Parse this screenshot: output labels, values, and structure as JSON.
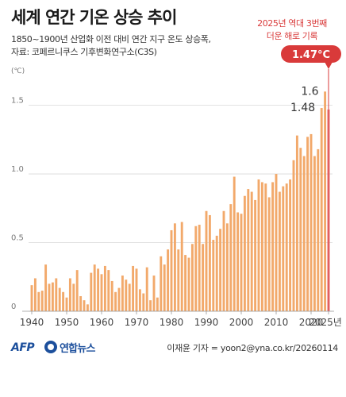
{
  "header": {
    "title": "세계 연간 기온 상승 추이",
    "subtitle_line1": "1850~1900년 산업화 이전 대비 연간 지구 온도 상승폭,",
    "subtitle_line2": "자료: 코페르니쿠스 기후변화연구소(C3S)"
  },
  "highlight": {
    "note_line1": "2025년 역대 3번째",
    "note_line2": "더운 해로 기록",
    "callout_label": "1.47°C"
  },
  "footer": {
    "logo_afp": "AFP",
    "logo_yonhap": "연합뉴스",
    "credit": "이재윤 기자 = yoon2@yna.co.kr/20260114"
  },
  "colors": {
    "bar": "#f2a96b",
    "highlight_bar": "#e26060",
    "callout": "#d93a3a",
    "grid": "#d8d8d8",
    "text": "#333333"
  },
  "chart_data": {
    "type": "bar",
    "title": "세계 연간 기온 상승 추이",
    "unit_label": "(℃)",
    "ylim": [
      0,
      1.7
    ],
    "y_ticks": [
      "0",
      "0.5",
      "1.0",
      "1.5"
    ],
    "y_tick_values": [
      0,
      0.5,
      1.0,
      1.5
    ],
    "x_ticks": [
      "1940",
      "1950",
      "1960",
      "1970",
      "1980",
      "1990",
      "2000",
      "2010",
      "2020",
      "2025년"
    ],
    "x_tick_years": [
      1940,
      1950,
      1960,
      1970,
      1980,
      1990,
      2000,
      2010,
      2020,
      2025
    ],
    "grid": true,
    "years": [
      1940,
      1941,
      1942,
      1943,
      1944,
      1945,
      1946,
      1947,
      1948,
      1949,
      1950,
      1951,
      1952,
      1953,
      1954,
      1955,
      1956,
      1957,
      1958,
      1959,
      1960,
      1961,
      1962,
      1963,
      1964,
      1965,
      1966,
      1967,
      1968,
      1969,
      1970,
      1971,
      1972,
      1973,
      1974,
      1975,
      1976,
      1977,
      1978,
      1979,
      1980,
      1981,
      1982,
      1983,
      1984,
      1985,
      1986,
      1987,
      1988,
      1989,
      1990,
      1991,
      1992,
      1993,
      1994,
      1995,
      1996,
      1997,
      1998,
      1999,
      2000,
      2001,
      2002,
      2003,
      2004,
      2005,
      2006,
      2007,
      2008,
      2009,
      2010,
      2011,
      2012,
      2013,
      2014,
      2015,
      2016,
      2017,
      2018,
      2019,
      2020,
      2021,
      2022,
      2023,
      2024,
      2025
    ],
    "values": [
      0.19,
      0.24,
      0.14,
      0.15,
      0.34,
      0.2,
      0.21,
      0.24,
      0.17,
      0.14,
      0.1,
      0.24,
      0.2,
      0.3,
      0.11,
      0.08,
      0.05,
      0.28,
      0.34,
      0.31,
      0.27,
      0.33,
      0.3,
      0.22,
      0.14,
      0.17,
      0.26,
      0.23,
      0.2,
      0.33,
      0.31,
      0.16,
      0.13,
      0.32,
      0.08,
      0.26,
      0.1,
      0.4,
      0.34,
      0.45,
      0.59,
      0.64,
      0.45,
      0.65,
      0.41,
      0.39,
      0.49,
      0.62,
      0.63,
      0.49,
      0.73,
      0.7,
      0.52,
      0.55,
      0.6,
      0.73,
      0.64,
      0.78,
      0.98,
      0.72,
      0.71,
      0.84,
      0.89,
      0.87,
      0.81,
      0.96,
      0.94,
      0.93,
      0.83,
      0.94,
      1.0,
      0.87,
      0.91,
      0.93,
      0.96,
      1.1,
      1.28,
      1.19,
      1.13,
      1.27,
      1.29,
      1.13,
      1.18,
      1.48,
      1.6,
      1.47
    ],
    "data_labels": [
      {
        "year": 2023,
        "text": "1.48"
      },
      {
        "year": 2024,
        "text": "1.6"
      }
    ],
    "highlight_year": 2025
  }
}
